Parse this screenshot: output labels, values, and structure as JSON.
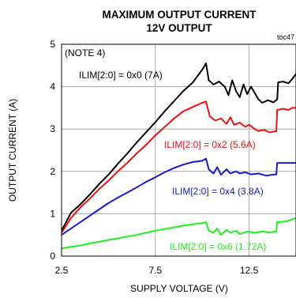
{
  "chart_data": {
    "type": "line",
    "title": "MAXIMUM OUTPUT CURRENT",
    "subtitle": "12V OUTPUT",
    "tag": "toc47",
    "note": "(NOTE 4)",
    "xlabel": "SUPPLY VOLTAGE (V)",
    "ylabel": "OUTPUT CURRENT (A)",
    "xlim": [
      2.5,
      15
    ],
    "ylim": [
      0,
      5
    ],
    "xticks": [
      "2.5",
      "7.5",
      "12.5"
    ],
    "xtick_values": [
      2.5,
      7.5,
      12.5
    ],
    "yticks": [
      "0",
      "1",
      "2",
      "3",
      "4",
      "5"
    ],
    "ytick_values": [
      0,
      1,
      2,
      3,
      4,
      5
    ],
    "grid": true,
    "series": [
      {
        "name": "ILIM[2:0] = 0x0 (7A)",
        "color": "#000000",
        "points": [
          [
            2.5,
            0.6
          ],
          [
            2.8,
            0.85
          ],
          [
            3.0,
            1.02
          ],
          [
            3.5,
            1.22
          ],
          [
            4.0,
            1.45
          ],
          [
            4.5,
            1.7
          ],
          [
            5.0,
            1.92
          ],
          [
            5.5,
            2.18
          ],
          [
            6.0,
            2.42
          ],
          [
            6.5,
            2.68
          ],
          [
            7.0,
            2.92
          ],
          [
            7.5,
            3.16
          ],
          [
            8.0,
            3.42
          ],
          [
            8.5,
            3.66
          ],
          [
            9.0,
            3.9
          ],
          [
            9.5,
            4.1
          ],
          [
            9.8,
            4.28
          ],
          [
            10.0,
            4.4
          ],
          [
            10.2,
            4.55
          ],
          [
            10.35,
            4.15
          ],
          [
            10.6,
            4.05
          ],
          [
            10.9,
            4.12
          ],
          [
            11.2,
            4.0
          ],
          [
            11.4,
            3.8
          ],
          [
            11.6,
            4.15
          ],
          [
            11.8,
            3.9
          ],
          [
            12.0,
            3.75
          ],
          [
            12.2,
            4.05
          ],
          [
            12.4,
            3.82
          ],
          [
            12.6,
            4.0
          ],
          [
            12.8,
            3.85
          ],
          [
            13.0,
            3.7
          ],
          [
            13.2,
            3.62
          ],
          [
            13.5,
            3.68
          ],
          [
            13.8,
            3.63
          ],
          [
            14.0,
            3.7
          ],
          [
            14.05,
            4.1
          ],
          [
            14.3,
            4.12
          ],
          [
            14.6,
            4.08
          ],
          [
            14.8,
            4.18
          ],
          [
            15.0,
            4.3
          ]
        ]
      },
      {
        "name": "ILIM[2:0] = 0x2 (5.6A)",
        "color": "#ee1111",
        "points": [
          [
            2.5,
            0.55
          ],
          [
            3.0,
            0.9
          ],
          [
            3.5,
            1.15
          ],
          [
            4.0,
            1.35
          ],
          [
            4.5,
            1.58
          ],
          [
            5.0,
            1.78
          ],
          [
            5.5,
            2.0
          ],
          [
            6.0,
            2.2
          ],
          [
            6.5,
            2.42
          ],
          [
            7.0,
            2.62
          ],
          [
            7.5,
            2.85
          ],
          [
            8.0,
            3.05
          ],
          [
            8.5,
            3.25
          ],
          [
            9.0,
            3.42
          ],
          [
            9.5,
            3.52
          ],
          [
            10.0,
            3.62
          ],
          [
            10.2,
            3.65
          ],
          [
            10.4,
            3.3
          ],
          [
            10.7,
            3.2
          ],
          [
            11.0,
            3.25
          ],
          [
            11.3,
            3.12
          ],
          [
            11.5,
            3.28
          ],
          [
            11.7,
            3.1
          ],
          [
            12.0,
            3.15
          ],
          [
            12.3,
            3.05
          ],
          [
            12.5,
            3.1
          ],
          [
            12.8,
            3.0
          ],
          [
            13.0,
            2.95
          ],
          [
            13.3,
            2.98
          ],
          [
            13.6,
            2.92
          ],
          [
            13.95,
            2.95
          ],
          [
            14.0,
            3.45
          ],
          [
            14.3,
            3.48
          ],
          [
            14.6,
            3.45
          ],
          [
            14.8,
            3.5
          ],
          [
            15.0,
            3.5
          ]
        ]
      },
      {
        "name": "ILIM[2:0] = 0x4 (3.8A)",
        "color": "#1a1acc",
        "points": [
          [
            2.5,
            0.5
          ],
          [
            3.0,
            0.65
          ],
          [
            3.5,
            0.8
          ],
          [
            4.0,
            0.95
          ],
          [
            4.5,
            1.1
          ],
          [
            5.0,
            1.25
          ],
          [
            5.5,
            1.38
          ],
          [
            6.0,
            1.5
          ],
          [
            6.5,
            1.62
          ],
          [
            7.0,
            1.75
          ],
          [
            7.5,
            1.86
          ],
          [
            8.0,
            1.98
          ],
          [
            8.5,
            2.08
          ],
          [
            9.0,
            2.16
          ],
          [
            9.5,
            2.22
          ],
          [
            10.0,
            2.25
          ],
          [
            10.2,
            2.3
          ],
          [
            10.35,
            2.05
          ],
          [
            10.6,
            1.95
          ],
          [
            10.8,
            2.1
          ],
          [
            11.0,
            1.92
          ],
          [
            11.3,
            2.05
          ],
          [
            11.5,
            1.95
          ],
          [
            11.8,
            2.0
          ],
          [
            12.0,
            1.95
          ],
          [
            12.3,
            1.98
          ],
          [
            12.6,
            1.93
          ],
          [
            13.0,
            1.95
          ],
          [
            13.4,
            1.9
          ],
          [
            13.7,
            1.92
          ],
          [
            13.95,
            1.93
          ],
          [
            14.0,
            2.2
          ],
          [
            14.5,
            2.2
          ],
          [
            15.0,
            2.2
          ]
        ]
      },
      {
        "name": "ILIM[2:0] = 0x6 (1.72A)",
        "color": "#22ee22",
        "points": [
          [
            2.5,
            0.18
          ],
          [
            3.0,
            0.22
          ],
          [
            3.5,
            0.25
          ],
          [
            4.0,
            0.3
          ],
          [
            4.5,
            0.34
          ],
          [
            5.0,
            0.38
          ],
          [
            5.5,
            0.42
          ],
          [
            6.0,
            0.46
          ],
          [
            6.5,
            0.5
          ],
          [
            7.0,
            0.55
          ],
          [
            7.5,
            0.6
          ],
          [
            8.0,
            0.64
          ],
          [
            8.5,
            0.68
          ],
          [
            9.0,
            0.72
          ],
          [
            9.5,
            0.75
          ],
          [
            10.0,
            0.78
          ],
          [
            10.2,
            0.8
          ],
          [
            10.35,
            0.6
          ],
          [
            10.6,
            0.55
          ],
          [
            10.8,
            0.65
          ],
          [
            11.0,
            0.5
          ],
          [
            11.3,
            0.62
          ],
          [
            11.5,
            0.55
          ],
          [
            11.8,
            0.6
          ],
          [
            12.0,
            0.52
          ],
          [
            12.4,
            0.58
          ],
          [
            12.8,
            0.55
          ],
          [
            13.2,
            0.58
          ],
          [
            13.6,
            0.56
          ],
          [
            13.95,
            0.58
          ],
          [
            14.0,
            0.8
          ],
          [
            14.5,
            0.82
          ],
          [
            15.0,
            0.9
          ]
        ]
      }
    ]
  }
}
